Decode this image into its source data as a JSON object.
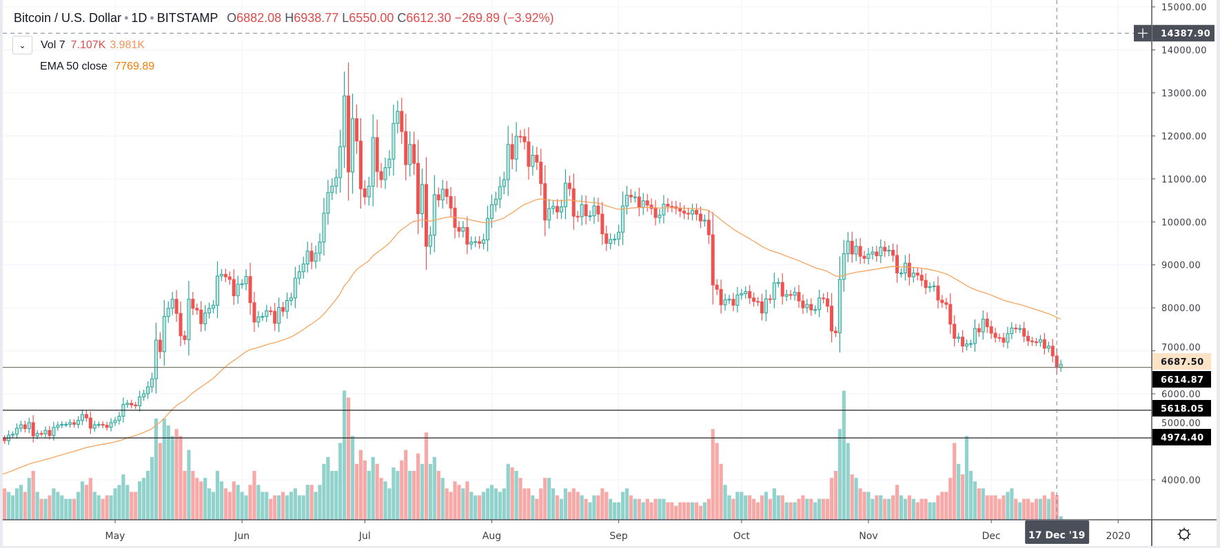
{
  "header": {
    "symbol": "Bitcoin / U.S. Dollar",
    "interval": "1D",
    "exchange": "BITSTAMP",
    "open_label": "O",
    "open": "6882.08",
    "high_label": "H",
    "high": "6938.77",
    "low_label": "L",
    "low": "6550.00",
    "close_label": "C",
    "close": "6612.30",
    "change": "−269.89 (−3.92%)"
  },
  "indicators": {
    "vol": {
      "label": "Vol 7",
      "value": "7.107K",
      "ma": "3.981K"
    },
    "ema": {
      "label": "EMA 50 close",
      "value": "7769.89"
    }
  },
  "colors": {
    "up": "#26a69a",
    "down": "#ef5350",
    "ema": "#f7a35c",
    "up_volume": "#92d2cc",
    "down_volume": "#f7a9a7"
  },
  "crosshair": {
    "price": "14387.90",
    "date": "17 Dec '19"
  },
  "price_labels": [
    {
      "value": "6687.50",
      "style": "last"
    },
    {
      "value": "6614.87",
      "style": "line"
    },
    {
      "value": "5618.05",
      "style": "line"
    },
    {
      "value": "4974.40",
      "style": "line"
    }
  ],
  "settings_icon": "gear-icon",
  "chart_data": {
    "type": "candlestick",
    "ylim": [
      4000,
      15000
    ],
    "y_ticks": [
      "15000.00",
      "14000.00",
      "13000.00",
      "12000.00",
      "11000.00",
      "10000.00",
      "9000.00",
      "8000.00",
      "7000.00",
      "6000.00",
      "5000.00",
      "4000.00"
    ],
    "x_ticks": [
      "May",
      "Jun",
      "Jul",
      "Aug",
      "Sep",
      "Oct",
      "Nov",
      "Dec",
      "2020"
    ],
    "first_date": "2019-04-03",
    "last_date": "2019-12-18",
    "horizontal_lines": [
      6614.87,
      5618.05,
      4974.4
    ],
    "ema_period": 50,
    "grid": true,
    "close": [
      4960,
      4910,
      5040,
      5060,
      5200,
      5280,
      5190,
      5330,
      5020,
      5080,
      5070,
      5150,
      5030,
      5220,
      5270,
      5290,
      5290,
      5330,
      5290,
      5380,
      5520,
      5440,
      5200,
      5280,
      5290,
      5270,
      5220,
      5330,
      5380,
      5480,
      5750,
      5780,
      5740,
      5720,
      5930,
      6000,
      6160,
      6350,
      7250,
      6980,
      7800,
      7990,
      8200,
      7870,
      7350,
      7260,
      8200,
      7990,
      7950,
      7630,
      7880,
      7990,
      8060,
      8740,
      8780,
      8720,
      8660,
      8280,
      8550,
      8560,
      8730,
      8120,
      7670,
      7790,
      7800,
      7930,
      7920,
      7640,
      8010,
      7920,
      8170,
      8230,
      8690,
      8840,
      9020,
      9320,
      9080,
      9270,
      9530,
      10200,
      10680,
      10830,
      11030,
      11750,
      12930,
      11160,
      12400,
      11880,
      10770,
      10580,
      10830,
      11960,
      11170,
      10980,
      11260,
      11460,
      12290,
      12570,
      12100,
      11330,
      11800,
      11360,
      10190,
      10870,
      9430,
      9690,
      10630,
      10510,
      10760,
      10590,
      10320,
      9870,
      9780,
      9870,
      9480,
      9530,
      9540,
      9500,
      9580,
      10080,
      10400,
      10530,
      10820,
      10980,
      11800,
      11460,
      11990,
      11980,
      11860,
      11290,
      11550,
      11390,
      10890,
      10040,
      10310,
      10360,
      10230,
      10350,
      10900,
      10770,
      10130,
      10120,
      10400,
      10140,
      10140,
      10370,
      10180,
      9720,
      9500,
      9590,
      9600,
      9760,
      10370,
      10620,
      10580,
      10580,
      10330,
      10490,
      10390,
      10310,
      10100,
      10160,
      10410,
      10360,
      10350,
      10310,
      10250,
      10200,
      10180,
      10270,
      10180,
      10020,
      10040,
      9700,
      8530,
      8430,
      8070,
      8190,
      8200,
      8060,
      8300,
      8330,
      8380,
      8230,
      8150,
      8140,
      7880,
      8210,
      8200,
      8580,
      8590,
      8270,
      8310,
      8290,
      8360,
      8160,
      8000,
      8080,
      7950,
      7960,
      8230,
      8210,
      8040,
      7460,
      7420,
      8660,
      9260,
      9550,
      9250,
      9430,
      9200,
      9150,
      9250,
      9300,
      9210,
      9410,
      9320,
      9340,
      9220,
      8810,
      8810,
      9040,
      8720,
      8810,
      8760,
      8640,
      8470,
      8490,
      8510,
      8180,
      8120,
      8080,
      7620,
      7290,
      7320,
      7110,
      7160,
      7170,
      7520,
      7440,
      7740,
      7560,
      7410,
      7310,
      7300,
      7200,
      7400,
      7530,
      7510,
      7520,
      7340,
      7230,
      7210,
      7200,
      7260,
      7060,
      7110,
      6882.08,
      6612.3,
      6687.5
    ],
    "volume_k": [
      11,
      9,
      8,
      7,
      9,
      10,
      8,
      12,
      14,
      8,
      6,
      6,
      7,
      9,
      8,
      7,
      6,
      6,
      6,
      8,
      11,
      10,
      12,
      8,
      7,
      6,
      7,
      7,
      9,
      10,
      13,
      10,
      8,
      8,
      11,
      12,
      14,
      18,
      29,
      22,
      29,
      27,
      24,
      26,
      24,
      14,
      20,
      14,
      12,
      11,
      12,
      9,
      8,
      14,
      11,
      9,
      8,
      11,
      10,
      8,
      7,
      10,
      14,
      10,
      8,
      8,
      6,
      7,
      7,
      8,
      7,
      8,
      9,
      7,
      7,
      10,
      10,
      8,
      10,
      16,
      18,
      14,
      14,
      22,
      37,
      35,
      24,
      16,
      20,
      17,
      14,
      18,
      16,
      12,
      11,
      9,
      15,
      14,
      17,
      20,
      14,
      14,
      19,
      16,
      25,
      16,
      18,
      14,
      12,
      9,
      8,
      11,
      10,
      9,
      11,
      8,
      7,
      7,
      8,
      9,
      10,
      9,
      8,
      9,
      16,
      15,
      14,
      12,
      9,
      9,
      7,
      6,
      9,
      12,
      12,
      9,
      7,
      6,
      9,
      8,
      9,
      8,
      7,
      6,
      5,
      7,
      7,
      9,
      8,
      6,
      5,
      5,
      8,
      9,
      7,
      6,
      6,
      5,
      6,
      5,
      6,
      6,
      6,
      5,
      5,
      4,
      5,
      5,
      5,
      5,
      5,
      4,
      5,
      6,
      26,
      22,
      16,
      10,
      7,
      6,
      8,
      8,
      7,
      7,
      6,
      5,
      7,
      8,
      6,
      9,
      7,
      7,
      5,
      5,
      5,
      6,
      7,
      6,
      6,
      5,
      6,
      6,
      6,
      12,
      14,
      26,
      37,
      22,
      13,
      12,
      9,
      8,
      8,
      6,
      7,
      7,
      6,
      6,
      7,
      10,
      7,
      6,
      7,
      6,
      5,
      6,
      6,
      5,
      5,
      7,
      8,
      8,
      12,
      22,
      16,
      13,
      24,
      14,
      11,
      9,
      9,
      7,
      7,
      7,
      6,
      7,
      8,
      9,
      6,
      5,
      6,
      6,
      5,
      6,
      6,
      7,
      6,
      8,
      7.107,
      1
    ]
  }
}
